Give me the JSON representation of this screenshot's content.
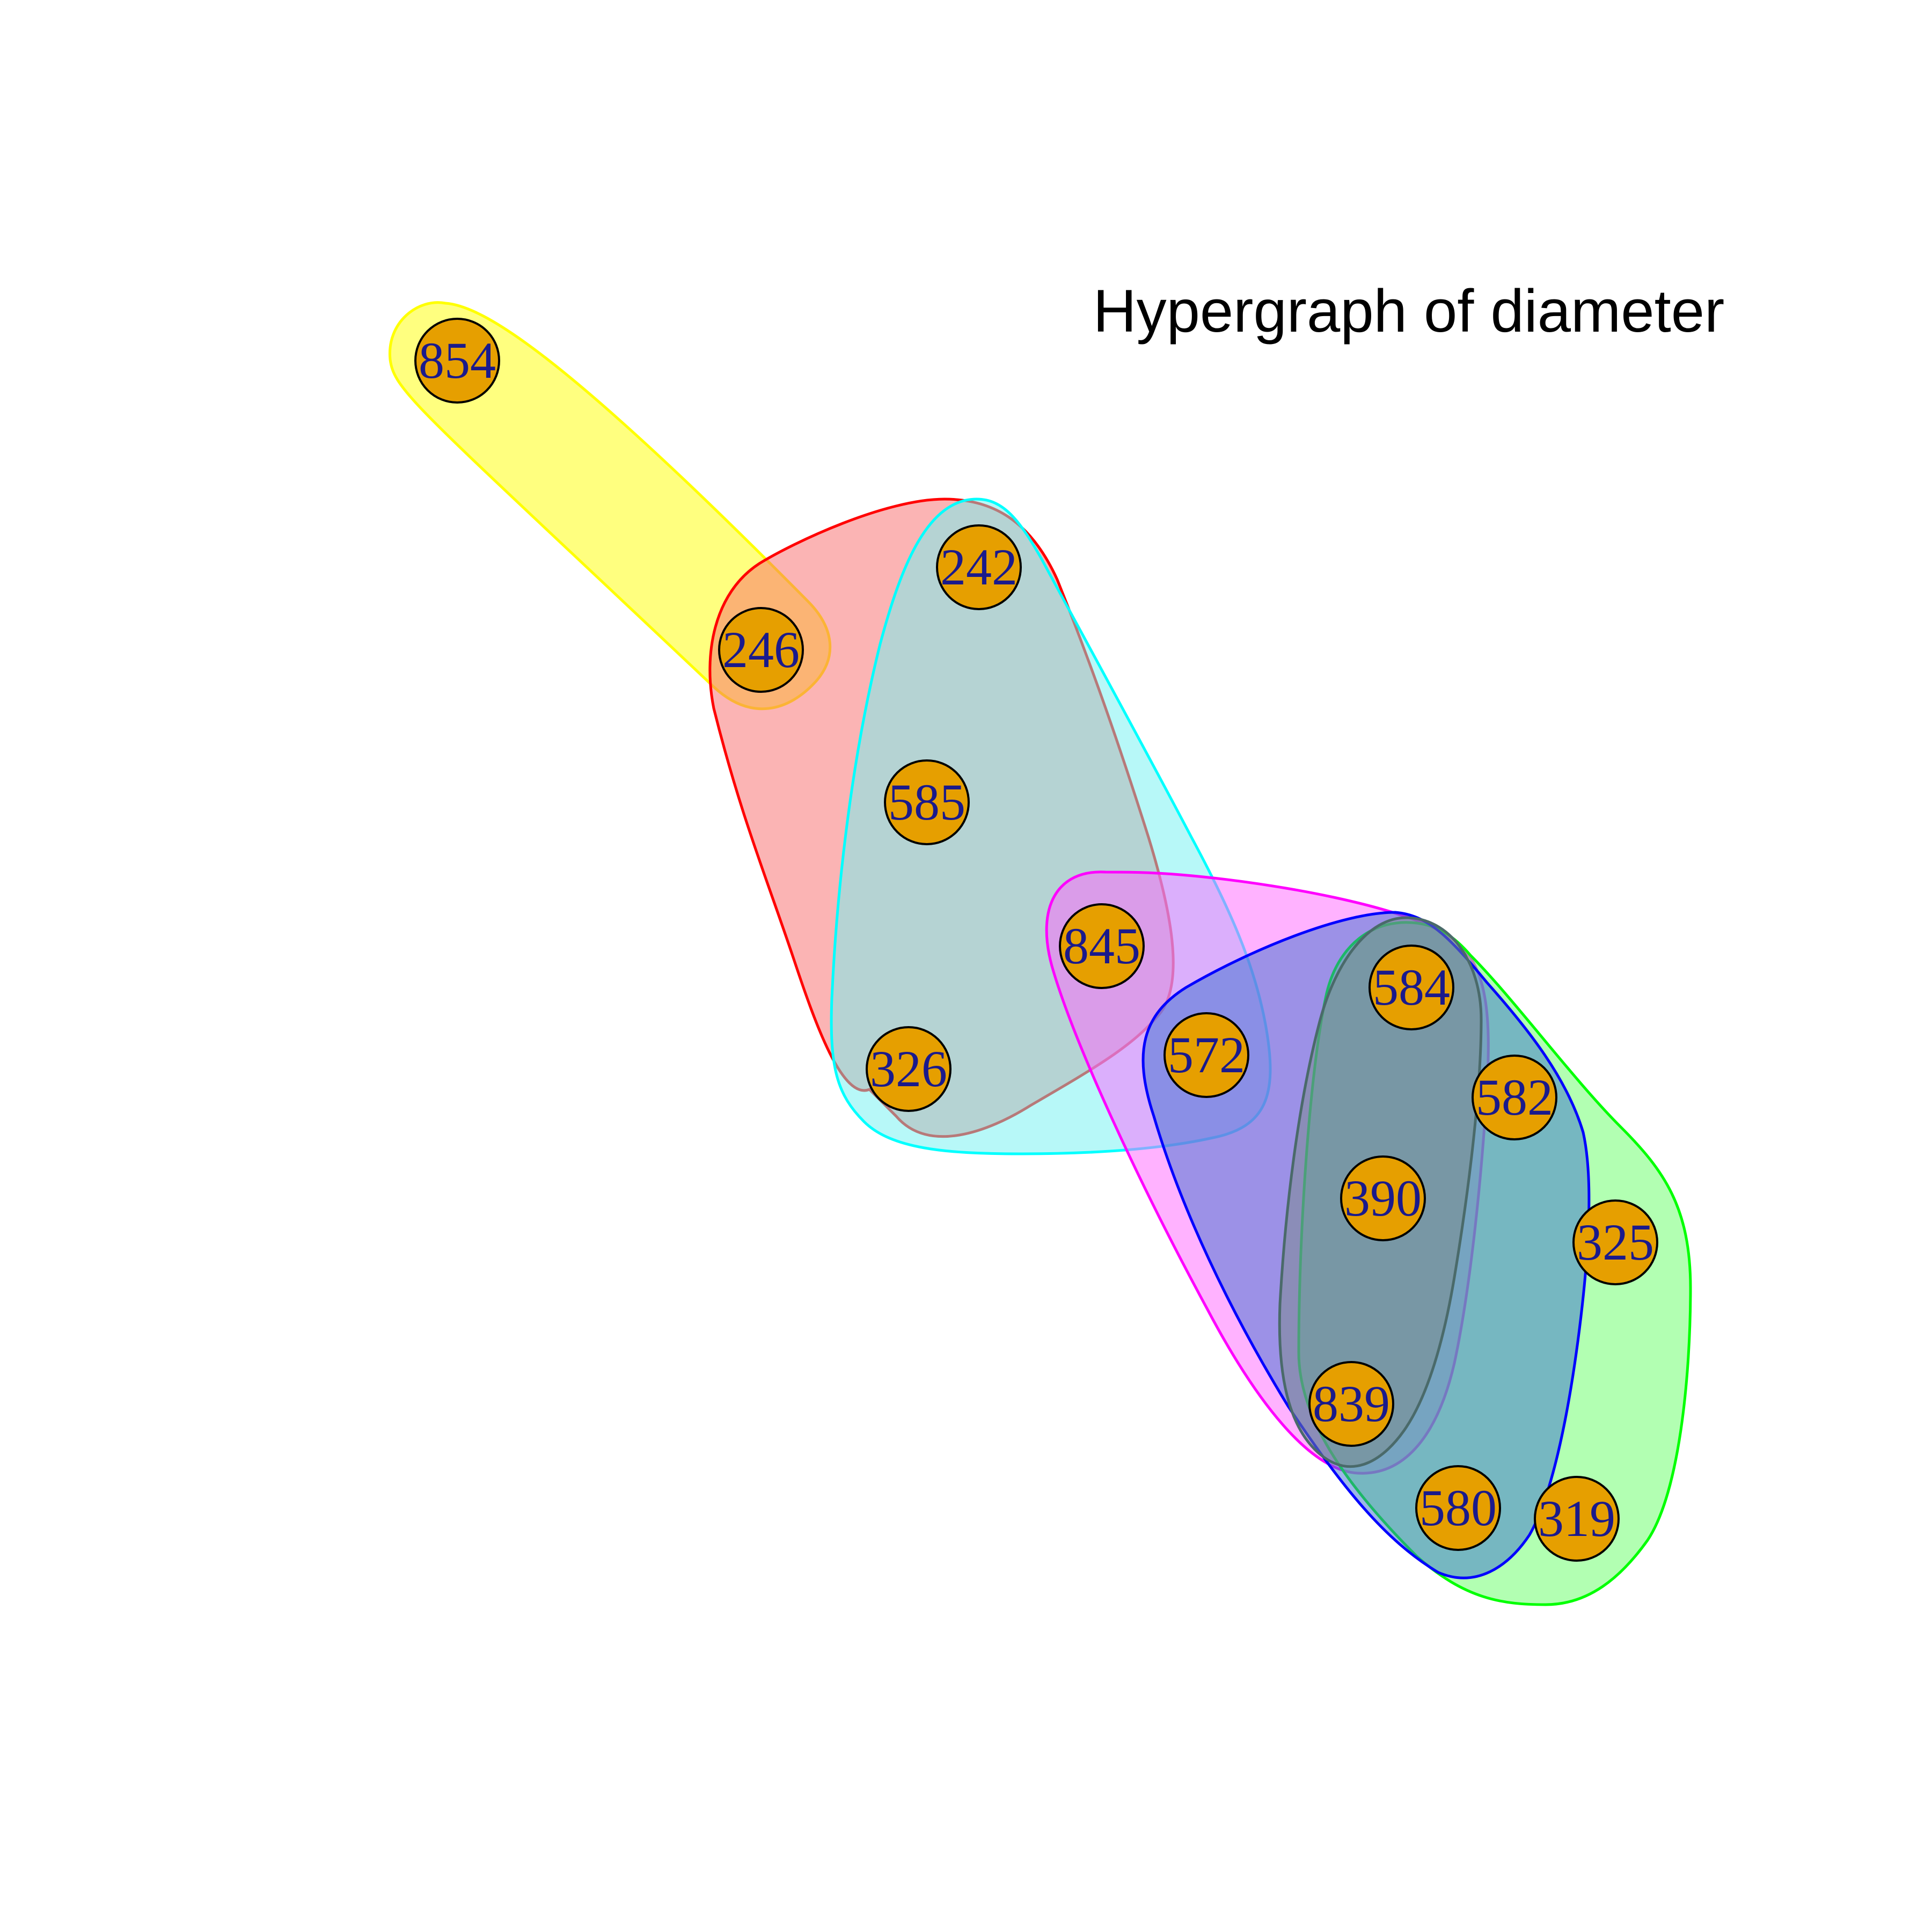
{
  "title": "Hypergraph of diameter",
  "node_fill": "#E69F00",
  "label_color": "#1a1a8c",
  "nodes": [
    {
      "id": "854"
    },
    {
      "id": "246"
    },
    {
      "id": "242"
    },
    {
      "id": "585"
    },
    {
      "id": "845"
    },
    {
      "id": "326"
    },
    {
      "id": "572"
    },
    {
      "id": "584"
    },
    {
      "id": "582"
    },
    {
      "id": "390"
    },
    {
      "id": "325"
    },
    {
      "id": "839"
    },
    {
      "id": "580"
    },
    {
      "id": "319"
    }
  ],
  "hyperedges": [
    {
      "color": "#FFFF00",
      "fill": "#FFFF00",
      "members": [
        "854",
        "246"
      ]
    },
    {
      "color": "#FF0000",
      "fill": "#F86A6A",
      "members": [
        "246",
        "242",
        "585",
        "845",
        "326"
      ]
    },
    {
      "color": "#00FFFF",
      "fill": "#6FF2F2",
      "members": [
        "242",
        "585",
        "845",
        "326",
        "572"
      ]
    },
    {
      "color": "#FF00FF",
      "fill": "#FF66FF",
      "members": [
        "845",
        "572",
        "584",
        "390",
        "839"
      ]
    },
    {
      "color": "#00FF00",
      "fill": "#66FF66",
      "members": [
        "584",
        "582",
        "390",
        "325",
        "839",
        "580",
        "319"
      ]
    },
    {
      "color": "#0000FF",
      "fill": "#3A6FD0",
      "members": [
        "572",
        "584",
        "582",
        "390",
        "839",
        "580"
      ]
    },
    {
      "color": "#4A6A6A",
      "fill": "#7A8A8A",
      "members": [
        "584",
        "390",
        "839",
        "580"
      ]
    }
  ]
}
